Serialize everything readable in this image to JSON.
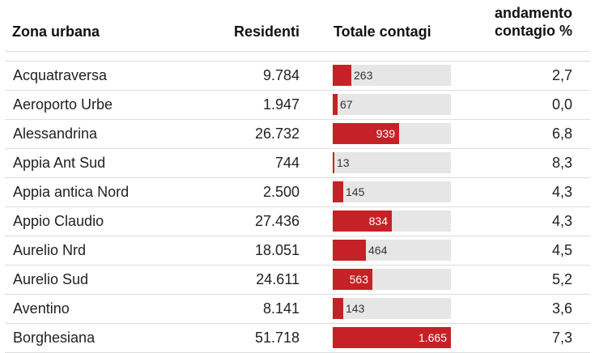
{
  "colors": {
    "bar": "#c62127",
    "track": "#e6e6e6",
    "rule": "#dddddd"
  },
  "header": {
    "zona": "Zona urbana",
    "residenti": "Residenti",
    "totale": "Totale contagi",
    "andamento_line1": "andamento",
    "andamento_line2": "contagio %"
  },
  "bar_max": 1665,
  "rows": [
    {
      "zona": "Acquatraversa",
      "residenti": "9.784",
      "contagi": 263,
      "contagi_label": "263",
      "andamento": "2,7"
    },
    {
      "zona": "Aeroporto Urbe",
      "residenti": "1.947",
      "contagi": 67,
      "contagi_label": "67",
      "andamento": "0,0"
    },
    {
      "zona": "Alessandrina",
      "residenti": "26.732",
      "contagi": 939,
      "contagi_label": "939",
      "andamento": "6,8"
    },
    {
      "zona": "Appia Ant Sud",
      "residenti": "744",
      "contagi": 13,
      "contagi_label": "13",
      "andamento": "8,3"
    },
    {
      "zona": "Appia antica Nord",
      "residenti": "2.500",
      "contagi": 145,
      "contagi_label": "145",
      "andamento": "4,3"
    },
    {
      "zona": "Appio Claudio",
      "residenti": "27.436",
      "contagi": 834,
      "contagi_label": "834",
      "andamento": "4,3"
    },
    {
      "zona": "Aurelio Nrd",
      "residenti": "18.051",
      "contagi": 464,
      "contagi_label": "464",
      "andamento": "4,5"
    },
    {
      "zona": "Aurelio Sud",
      "residenti": "24.611",
      "contagi": 563,
      "contagi_label": "563",
      "andamento": "5,2"
    },
    {
      "zona": "Aventino",
      "residenti": "8.141",
      "contagi": 143,
      "contagi_label": "143",
      "andamento": "3,6"
    },
    {
      "zona": "Borghesiana",
      "residenti": "51.718",
      "contagi": 1665,
      "contagi_label": "1.665",
      "andamento": "7,3"
    }
  ]
}
